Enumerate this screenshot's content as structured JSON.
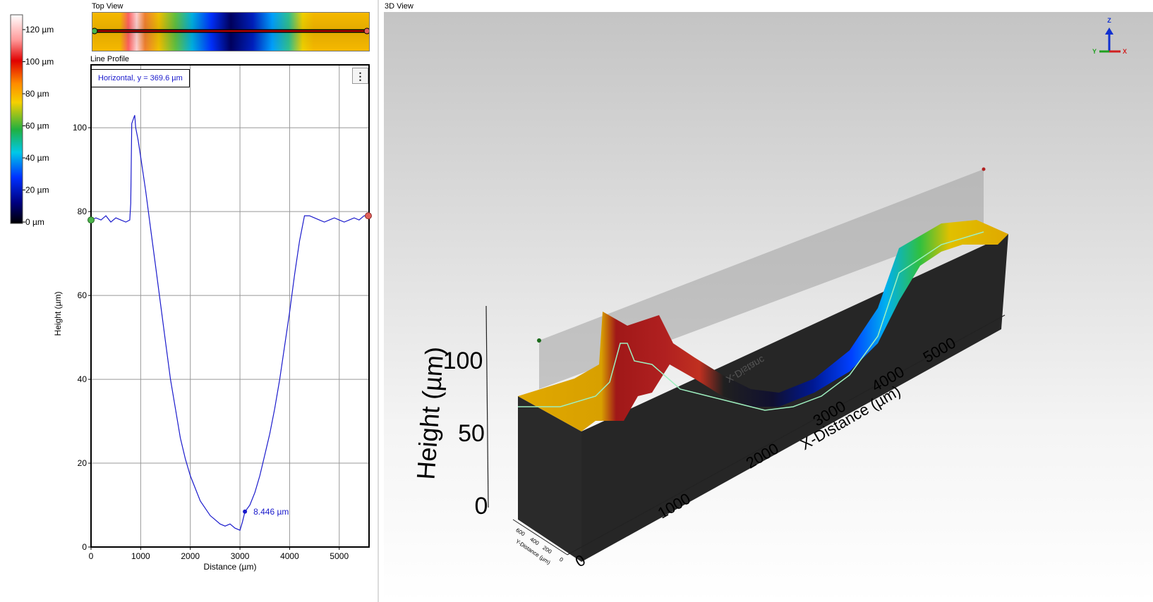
{
  "colorbar": {
    "ticks": [
      "120 µm",
      "100 µm",
      "80 µm",
      "60 µm",
      "40 µm",
      "20 µm",
      "0 µm"
    ],
    "gradient_stops": [
      "#ffffff",
      "#ff9a9a",
      "#e00000",
      "#ff8c00",
      "#f5d000",
      "#20b040",
      "#00c8e8",
      "#0030ff",
      "#000080",
      "#000000"
    ]
  },
  "top_view": {
    "label": "Top View",
    "profile_line_color": "#c00000"
  },
  "line_profile": {
    "label": "Line Profile",
    "legend": "Horizontal, y = 369.6 µm",
    "menu_icon": "kebab-menu-icon",
    "cursor_label": "8.446 µm",
    "start_marker_color": "#49b449",
    "end_marker_color": "#e0605a"
  },
  "chart_data": {
    "type": "line",
    "xlabel": "Distance (µm)",
    "ylabel": "Height (µm)",
    "xlim": [
      0,
      5600
    ],
    "ylim": [
      0,
      115
    ],
    "x_ticks": [
      0,
      1000,
      2000,
      3000,
      4000,
      5000
    ],
    "y_ticks": [
      0,
      20,
      40,
      60,
      80,
      100
    ],
    "grid": true,
    "series": [
      {
        "color": "#1a1acc",
        "x": [
          0,
          100,
          200,
          300,
          400,
          500,
          600,
          700,
          780,
          800,
          820,
          850,
          880,
          900,
          950,
          1000,
          1100,
          1200,
          1300,
          1400,
          1500,
          1600,
          1700,
          1800,
          1900,
          2000,
          2200,
          2400,
          2500,
          2600,
          2700,
          2800,
          2900,
          3000,
          3050,
          3100,
          3200,
          3300,
          3400,
          3500,
          3600,
          3700,
          3800,
          3900,
          4000,
          4100,
          4200,
          4300,
          4400,
          4500,
          4600,
          4700,
          4800,
          4900,
          5000,
          5100,
          5200,
          5300,
          5400,
          5500,
          5600
        ],
        "y": [
          78,
          78.5,
          78,
          79,
          77.5,
          78.5,
          78,
          77.5,
          78,
          82,
          101,
          102,
          103,
          100,
          97,
          93,
          85,
          76,
          67,
          58,
          49,
          40,
          33,
          26,
          21,
          17,
          11,
          7.5,
          6.5,
          5.5,
          5,
          5.5,
          4.5,
          4,
          6,
          8.4,
          10,
          13,
          17,
          22,
          27,
          33,
          40,
          48,
          56,
          65,
          73,
          79,
          79,
          78.5,
          78,
          77.5,
          78,
          78.5,
          78,
          77.5,
          78,
          78.5,
          78,
          79,
          79
        ]
      }
    ],
    "cursor": {
      "x": 3100,
      "y": 8.446
    }
  },
  "view3d": {
    "label": "3D View",
    "z_axis_title": "Height (µm)",
    "z_ticks": [
      "100",
      "50",
      "0"
    ],
    "x_axis_title": "X-Distance (µm)",
    "x_ticks": [
      "0",
      "1000",
      "2000",
      "3000",
      "4000",
      "5000"
    ],
    "y_axis_title": "Y-Distance (µm)",
    "y_ticks": [
      "0",
      "200",
      "400",
      "600"
    ],
    "mirrored_label": "X-Distanc",
    "axes_gizmo": {
      "z": "Z",
      "y": "Y",
      "x": "X",
      "z_color": "#1030d0",
      "y_color": "#20a020",
      "x_color": "#d02020"
    }
  }
}
